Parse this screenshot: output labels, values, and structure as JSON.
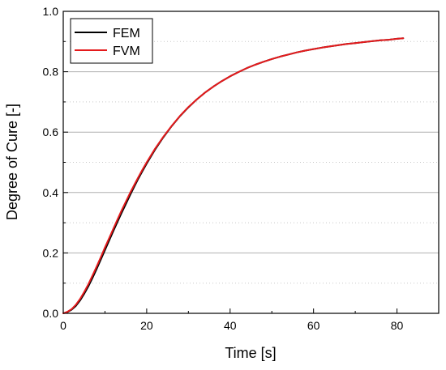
{
  "chart_data": {
    "type": "line",
    "title": "",
    "xlabel": "Time [s]",
    "ylabel": "Degree of Cure [-]",
    "xlim": [
      0,
      90
    ],
    "ylim": [
      0,
      1.0
    ],
    "x_ticks": [
      0,
      20,
      40,
      60,
      80
    ],
    "x_tick_labels": [
      "0",
      "20",
      "40",
      "60",
      "80"
    ],
    "y_ticks": [
      0.0,
      0.2,
      0.4,
      0.6,
      0.8,
      1.0
    ],
    "y_tick_labels": [
      "0.0",
      "0.2",
      "0.4",
      "0.6",
      "0.8",
      "1.0"
    ],
    "grid": {
      "major_y": true,
      "minor_y": true,
      "x": false
    },
    "legend_position": "top-left",
    "series": [
      {
        "name": "FEM",
        "color": "#000000",
        "x": [
          0,
          1,
          2,
          3,
          4,
          5,
          6,
          7,
          8,
          9,
          10,
          11,
          12,
          13,
          14,
          15,
          16,
          17,
          18,
          19,
          20,
          22,
          24,
          26,
          28,
          30,
          32,
          34,
          36,
          38,
          40,
          42,
          44,
          46,
          48,
          50,
          52,
          54,
          56,
          58,
          60,
          62,
          64,
          66,
          68,
          70,
          72,
          74,
          76,
          78,
          80,
          81.5
        ],
        "y": [
          0.0,
          0.004,
          0.012,
          0.024,
          0.042,
          0.064,
          0.089,
          0.117,
          0.147,
          0.178,
          0.209,
          0.241,
          0.272,
          0.303,
          0.333,
          0.362,
          0.391,
          0.419,
          0.446,
          0.471,
          0.496,
          0.542,
          0.583,
          0.62,
          0.653,
          0.682,
          0.708,
          0.731,
          0.751,
          0.769,
          0.785,
          0.799,
          0.812,
          0.823,
          0.833,
          0.842,
          0.85,
          0.857,
          0.864,
          0.87,
          0.875,
          0.88,
          0.884,
          0.888,
          0.892,
          0.895,
          0.898,
          0.901,
          0.904,
          0.906,
          0.909,
          0.911
        ]
      },
      {
        "name": "FVM",
        "color": "#e41a1c",
        "x": [
          0,
          1,
          2,
          3,
          4,
          5,
          6,
          7,
          8,
          9,
          10,
          11,
          12,
          13,
          14,
          15,
          16,
          17,
          18,
          19,
          20,
          22,
          24,
          26,
          28,
          30,
          32,
          34,
          36,
          38,
          40,
          42,
          44,
          46,
          48,
          50,
          52,
          54,
          56,
          58,
          60,
          62,
          64,
          66,
          68,
          70,
          72,
          74,
          76,
          78,
          80,
          81.5
        ],
        "y": [
          0.0,
          0.005,
          0.014,
          0.028,
          0.047,
          0.07,
          0.096,
          0.125,
          0.155,
          0.186,
          0.218,
          0.249,
          0.28,
          0.311,
          0.341,
          0.37,
          0.398,
          0.425,
          0.451,
          0.476,
          0.5,
          0.545,
          0.585,
          0.621,
          0.654,
          0.683,
          0.708,
          0.731,
          0.751,
          0.769,
          0.785,
          0.799,
          0.812,
          0.823,
          0.833,
          0.842,
          0.85,
          0.857,
          0.864,
          0.87,
          0.875,
          0.88,
          0.884,
          0.888,
          0.892,
          0.895,
          0.898,
          0.901,
          0.904,
          0.906,
          0.909,
          0.911
        ]
      }
    ]
  }
}
